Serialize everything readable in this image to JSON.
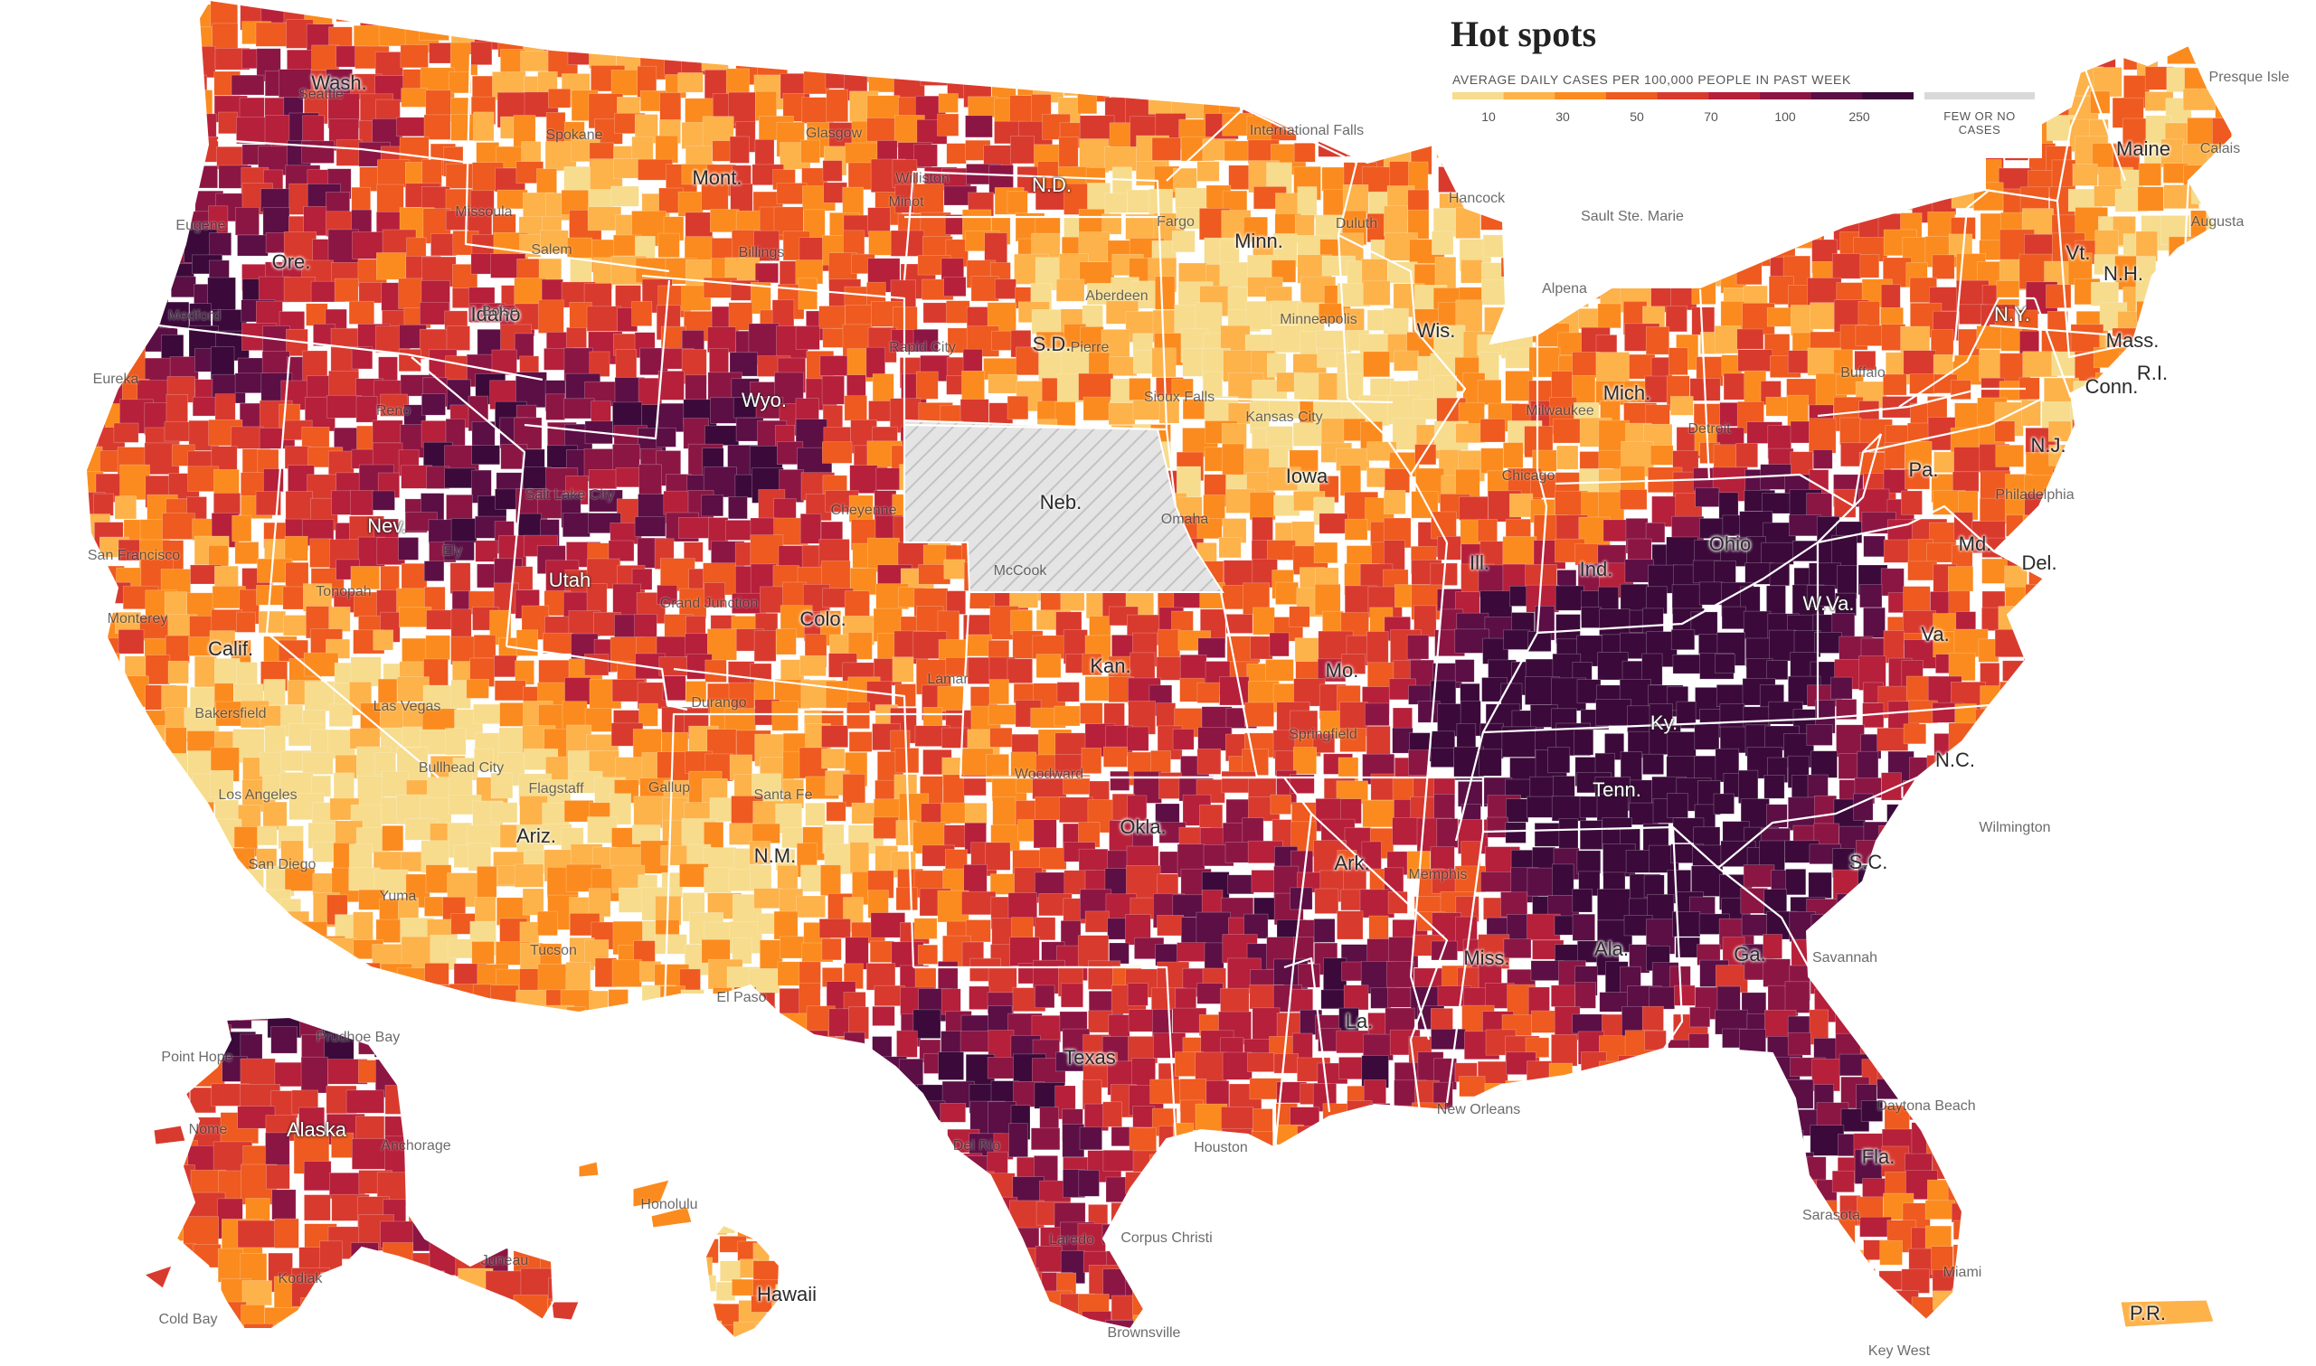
{
  "legend": {
    "title": "Hot spots",
    "subtitle": "AVERAGE DAILY CASES PER 100,000 PEOPLE IN PAST WEEK",
    "ticks": [
      "10",
      "30",
      "50",
      "70",
      "100",
      "250"
    ],
    "no_data_label": "FEW OR NO CASES",
    "colors": [
      "#f6dc8c",
      "#fdb24a",
      "#fb8b1e",
      "#ee5a1f",
      "#d93a2e",
      "#b6203a",
      "#8c1643",
      "#5b0f45",
      "#3b0a3a"
    ],
    "no_data_color": "#d9d9d9"
  },
  "states": [
    "Wash.",
    "Ore.",
    "Calif.",
    "Idaho",
    "Nev.",
    "Utah",
    "Ariz.",
    "Mont.",
    "Wyo.",
    "Colo.",
    "N.M.",
    "N.D.",
    "S.D.",
    "Neb.",
    "Kan.",
    "Okla.",
    "Texas",
    "Minn.",
    "Iowa",
    "Mo.",
    "Ark.",
    "La.",
    "Wis.",
    "Ill.",
    "Mich.",
    "Ind.",
    "Ohio",
    "Ky.",
    "Tenn.",
    "Miss.",
    "Ala.",
    "Ga.",
    "Fla.",
    "S.C.",
    "N.C.",
    "Va.",
    "W.Va.",
    "Pa.",
    "N.Y.",
    "Vt.",
    "N.H.",
    "Maine",
    "Mass.",
    "R.I.",
    "Conn.",
    "N.J.",
    "Del.",
    "Md.",
    "Alaska",
    "Hawaii",
    "P.R."
  ],
  "cities": [
    "Glasgow",
    "International Falls",
    "Presque Isle",
    "Calais",
    "Augusta",
    "Hancock",
    "Sault Ste. Marie",
    "Alpena",
    "Duluth",
    "Minneapolis",
    "Aberdeen",
    "Sioux Falls",
    "Fargo",
    "Minot",
    "Williston",
    "Eugene",
    "Medford",
    "Eureka",
    "San Francisco",
    "Monterey",
    "Bakersfield",
    "Los Angeles",
    "San Diego",
    "Las Vegas",
    "Tonopah",
    "Ely",
    "Bullhead City",
    "Yuma",
    "Tucson",
    "Flagstaff",
    "Gallup",
    "Santa Fe",
    "Durango",
    "Grand Junction",
    "Cheyenne",
    "McCook",
    "Lamar",
    "Woodward",
    "El Paso",
    "Del Rio",
    "Laredo",
    "Brownsville",
    "Corpus Christi",
    "Houston",
    "New Orleans",
    "Memphis",
    "Springfield",
    "Kansas City",
    "Chicago",
    "Milwaukee",
    "Detroit",
    "Buffalo",
    "Philadelphia",
    "Wilmington",
    "Savannah",
    "Daytona Beach",
    "Sarasota",
    "Miami",
    "Key West",
    "Point Hope",
    "Prudhoe Bay",
    "Nome",
    "Anchorage",
    "Kodiak",
    "Juneau",
    "Cold Bay",
    "Honolulu",
    "Salem",
    "Missoula",
    "Billings",
    "Rapid City",
    "Omaha",
    "Salt Lake City",
    "Boise",
    "Reno",
    "Spokane",
    "Seattle",
    "Pierre"
  ]
}
